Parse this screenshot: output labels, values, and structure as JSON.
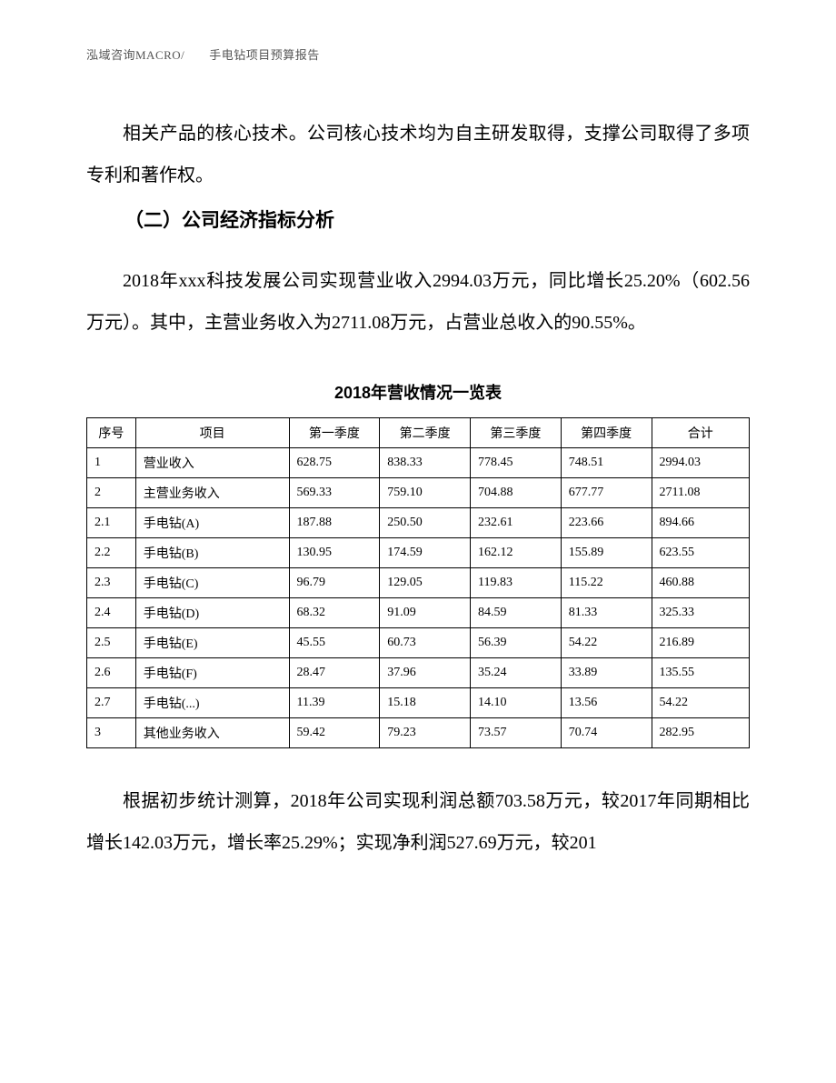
{
  "header": {
    "text": "泓域咨询MACRO/　　手电钻项目预算报告"
  },
  "paragraphs": {
    "p1": "相关产品的核心技术。公司核心技术均为自主研发取得，支撑公司取得了多项专利和著作权。",
    "section_title": "（二）公司经济指标分析",
    "p2": "2018年xxx科技发展公司实现营业收入2994.03万元，同比增长25.20%（602.56万元）。其中，主营业务收入为2711.08万元，占营业总收入的90.55%。",
    "table_title": "2018年营收情况一览表",
    "p3": "根据初步统计测算，2018年公司实现利润总额703.58万元，较2017年同期相比增长142.03万元，增长率25.29%；实现净利润527.69万元，较201"
  },
  "table": {
    "columns": [
      "序号",
      "项目",
      "第一季度",
      "第二季度",
      "第三季度",
      "第四季度",
      "合计"
    ],
    "rows": [
      [
        "1",
        "营业收入",
        "628.75",
        "838.33",
        "778.45",
        "748.51",
        "2994.03"
      ],
      [
        "2",
        "主营业务收入",
        "569.33",
        "759.10",
        "704.88",
        "677.77",
        "2711.08"
      ],
      [
        "2.1",
        "手电钻(A)",
        "187.88",
        "250.50",
        "232.61",
        "223.66",
        "894.66"
      ],
      [
        "2.2",
        "手电钻(B)",
        "130.95",
        "174.59",
        "162.12",
        "155.89",
        "623.55"
      ],
      [
        "2.3",
        "手电钻(C)",
        "96.79",
        "129.05",
        "119.83",
        "115.22",
        "460.88"
      ],
      [
        "2.4",
        "手电钻(D)",
        "68.32",
        "91.09",
        "84.59",
        "81.33",
        "325.33"
      ],
      [
        "2.5",
        "手电钻(E)",
        "45.55",
        "60.73",
        "56.39",
        "54.22",
        "216.89"
      ],
      [
        "2.6",
        "手电钻(F)",
        "28.47",
        "37.96",
        "35.24",
        "33.89",
        "135.55"
      ],
      [
        "2.7",
        "手电钻(...)",
        "11.39",
        "15.18",
        "14.10",
        "13.56",
        "54.22"
      ],
      [
        "3",
        "其他业务收入",
        "59.42",
        "79.23",
        "73.57",
        "70.74",
        "282.95"
      ]
    ]
  }
}
